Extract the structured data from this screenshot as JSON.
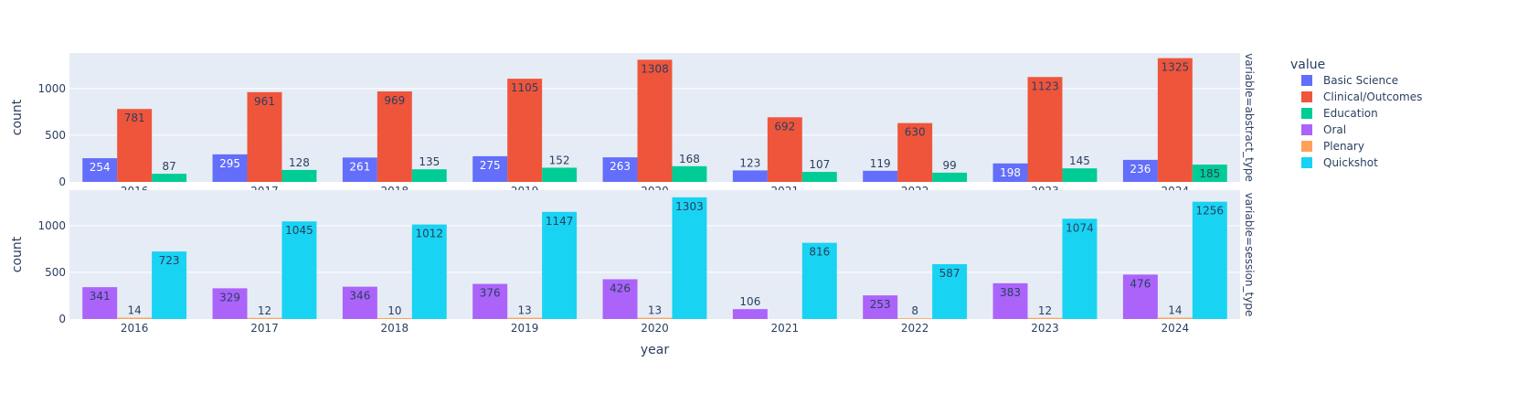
{
  "chart_data": {
    "type": "bar",
    "barmode": "group",
    "xlabel": "year",
    "ylabel": "count",
    "categories": [
      "2016",
      "2017",
      "2018",
      "2019",
      "2020",
      "2021",
      "2022",
      "2023",
      "2024"
    ],
    "legend": {
      "title": "value",
      "placement": "right",
      "entries": [
        {
          "name": "Basic Science",
          "color": "#636EFA"
        },
        {
          "name": "Clinical/Outcomes",
          "color": "#EF553B"
        },
        {
          "name": "Education",
          "color": "#00CC96"
        },
        {
          "name": "Oral",
          "color": "#AB63FA"
        },
        {
          "name": "Plenary",
          "color": "#FFA15A"
        },
        {
          "name": "Quickshot",
          "color": "#19D3F3"
        }
      ]
    },
    "facets": [
      {
        "label": "variable=abstract_type",
        "ylim": [
          0,
          1380
        ],
        "yticks": [
          0,
          500,
          1000
        ],
        "series": [
          {
            "name": "Basic Science",
            "values": [
              254,
              295,
              261,
              275,
              263,
              123,
              119,
              198,
              236
            ]
          },
          {
            "name": "Clinical/Outcomes",
            "values": [
              781,
              961,
              969,
              1105,
              1308,
              692,
              630,
              1123,
              1325
            ]
          },
          {
            "name": "Education",
            "values": [
              87,
              128,
              135,
              152,
              168,
              107,
              99,
              145,
              185
            ]
          }
        ]
      },
      {
        "label": "variable=session_type",
        "ylim": [
          0,
          1380
        ],
        "yticks": [
          0,
          500,
          1000
        ],
        "series": [
          {
            "name": "Oral",
            "values": [
              341,
              329,
              346,
              376,
              426,
              106,
              253,
              383,
              476
            ]
          },
          {
            "name": "Plenary",
            "values": [
              14,
              12,
              10,
              13,
              13,
              null,
              8,
              12,
              14
            ]
          },
          {
            "name": "Quickshot",
            "values": [
              723,
              1045,
              1012,
              1147,
              1303,
              816,
              587,
              1074,
              1256
            ]
          }
        ]
      }
    ],
    "grid": true
  }
}
